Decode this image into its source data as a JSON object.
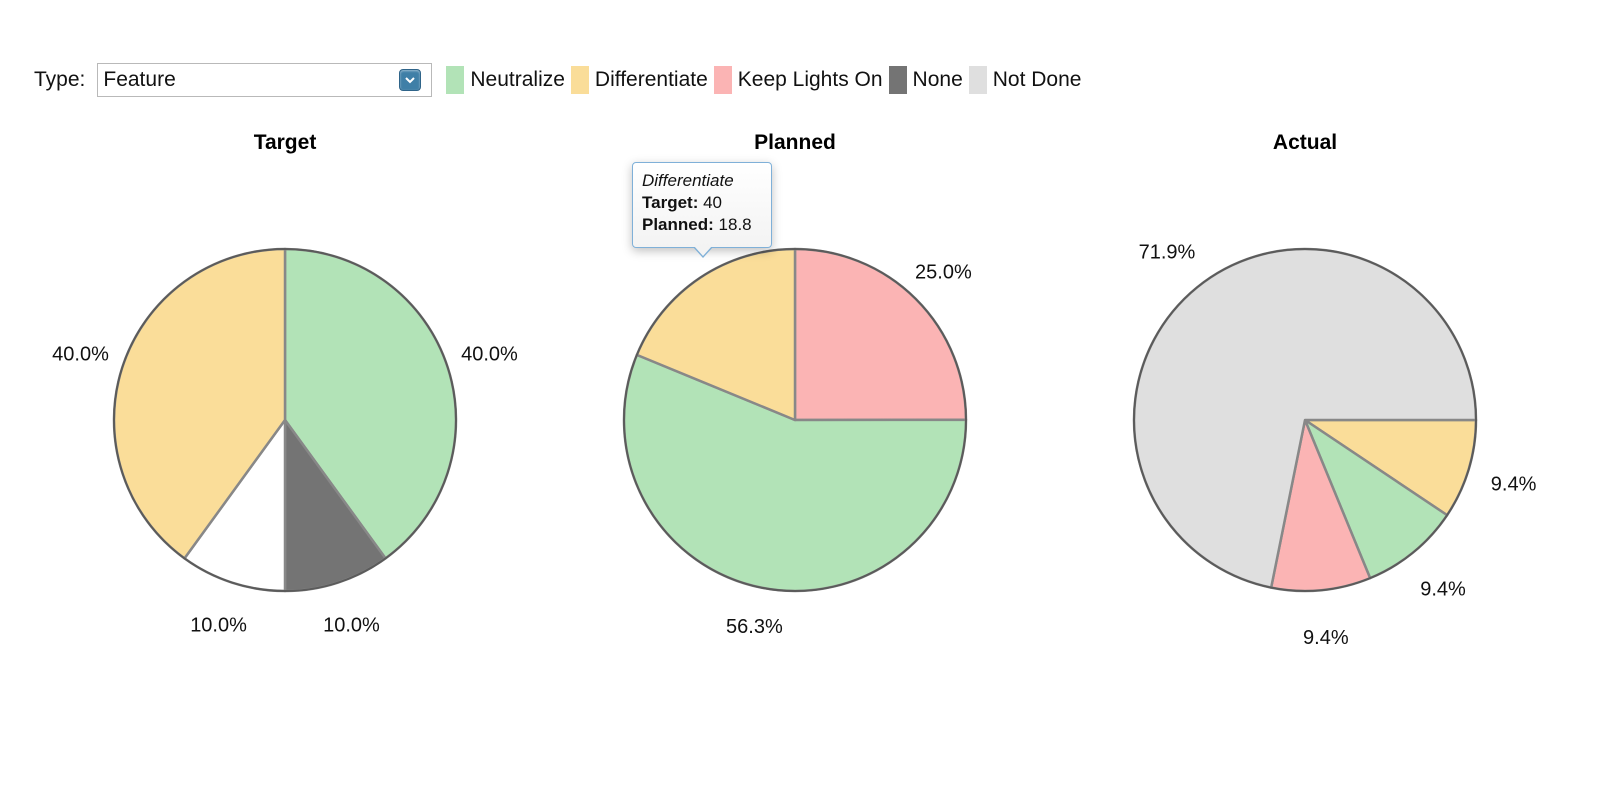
{
  "toolbar": {
    "type_label": "Type:",
    "type_value": "Feature"
  },
  "legend": [
    {
      "label": "Neutralize",
      "color": "#b2e3b7"
    },
    {
      "label": "Differentiate",
      "color": "#fadd99"
    },
    {
      "label": "Keep Lights On",
      "color": "#fbb4b4"
    },
    {
      "label": "None",
      "color": "#747474"
    },
    {
      "label": "Not Done",
      "color": "#dfdfdf"
    }
  ],
  "tooltip": {
    "title": "Differentiate",
    "target_label": "Target:",
    "target_value": "40",
    "planned_label": "Planned:",
    "planned_value": "18.8"
  },
  "chart_data": [
    {
      "type": "pie",
      "title": "Target",
      "slices": [
        {
          "label": "Neutralize",
          "value": 40.0,
          "text": "40.0%",
          "color": "#b2e3b7"
        },
        {
          "label": "None",
          "value": 10.0,
          "text": "10.0%",
          "color": "#747474"
        },
        {
          "label": "",
          "value": 10.0,
          "text": "10.0%",
          "color": "#ffffff"
        },
        {
          "label": "Differentiate",
          "value": 40.0,
          "text": "40.0%",
          "color": "#fadd99"
        }
      ]
    },
    {
      "type": "pie",
      "title": "Planned",
      "slices": [
        {
          "label": "Keep Lights On",
          "value": 25.0,
          "text": "25.0%",
          "color": "#fbb4b4"
        },
        {
          "label": "Neutralize",
          "value": 56.3,
          "text": "56.3%",
          "color": "#b2e3b7"
        },
        {
          "label": "Differentiate",
          "value": 18.8,
          "text": "",
          "color": "#fadd99"
        }
      ]
    },
    {
      "type": "pie",
      "title": "Actual",
      "slices": [
        {
          "label": "Differentiate",
          "value": 9.4,
          "text": "9.4%",
          "color": "#fadd99"
        },
        {
          "label": "Neutralize",
          "value": 9.4,
          "text": "9.4%",
          "color": "#b2e3b7"
        },
        {
          "label": "Keep Lights On",
          "value": 9.4,
          "text": "9.4%",
          "color": "#fbb4b4"
        },
        {
          "label": "Not Done",
          "value": 71.9,
          "text": "71.9%",
          "color": "#dfdfdf"
        }
      ]
    }
  ]
}
